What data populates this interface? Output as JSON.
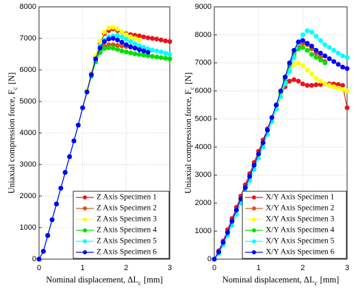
{
  "chart_data": [
    {
      "type": "line",
      "xlabel": [
        "Nominal displacement, ΔL",
        "c",
        "[mm]"
      ],
      "ylabel": [
        "Uniaxial compression force, F",
        "c",
        "[N]"
      ],
      "xlim": [
        0,
        3
      ],
      "xticks": [
        0,
        1,
        2,
        3
      ],
      "ylim": [
        0,
        8000
      ],
      "yticks": [
        0,
        1000,
        2000,
        3000,
        4000,
        5000,
        6000,
        7000,
        8000
      ],
      "grid": true,
      "legend": "lower right",
      "x": [
        0,
        0.1,
        0.2,
        0.3,
        0.4,
        0.5,
        0.6,
        0.7,
        0.8,
        0.9,
        1.0,
        1.1,
        1.2,
        1.3,
        1.4,
        1.5,
        1.6,
        1.7,
        1.8,
        1.9,
        2.0,
        2.1,
        2.2,
        2.3,
        2.4,
        2.5,
        2.6,
        2.7,
        2.8,
        2.9,
        3.0
      ],
      "series": [
        {
          "name": "Z Axis Specimen 1",
          "color": "#e8141b",
          "values": [
            0,
            250,
            750,
            1250,
            1750,
            2250,
            2750,
            3250,
            3750,
            4250,
            4800,
            5350,
            5900,
            6400,
            6850,
            7150,
            7250,
            7300,
            7250,
            7200,
            7150,
            7120,
            7100,
            7080,
            7050,
            7020,
            7000,
            6980,
            6950,
            6920,
            6900
          ]
        },
        {
          "name": "Z Axis Specimen 2",
          "color": "#d95319",
          "values": [
            0,
            250,
            750,
            1250,
            1750,
            2250,
            2750,
            3250,
            3750,
            4250,
            4800,
            5300,
            5850,
            6300,
            6600,
            6750,
            6800,
            6800,
            6780,
            6760,
            6740,
            6720,
            6700,
            6680,
            6650,
            null,
            null,
            null,
            null,
            null,
            null
          ]
        },
        {
          "name": "Z Axis Specimen 3",
          "color": "#ffff00",
          "values": [
            0,
            250,
            750,
            1250,
            1750,
            2250,
            2750,
            3250,
            3750,
            4250,
            4800,
            5350,
            5900,
            6450,
            6900,
            7200,
            7330,
            7350,
            7300,
            7200,
            7120,
            7050,
            7000,
            6950,
            null,
            null,
            null,
            null,
            null,
            null,
            null
          ]
        },
        {
          "name": "Z Axis Specimen 4",
          "color": "#00e000",
          "values": [
            0,
            250,
            750,
            1250,
            1750,
            2250,
            2750,
            3250,
            3750,
            4250,
            4800,
            5300,
            5800,
            6250,
            6550,
            6680,
            6700,
            6690,
            6650,
            6600,
            6570,
            6540,
            6510,
            6490,
            6470,
            6450,
            6430,
            6410,
            6390,
            6370,
            6350
          ]
        },
        {
          "name": "Z Axis Specimen 5",
          "color": "#00ffff",
          "values": [
            0,
            250,
            750,
            1250,
            1750,
            2250,
            2750,
            3250,
            3750,
            4250,
            4800,
            5300,
            5850,
            6350,
            6750,
            6950,
            7050,
            7080,
            7100,
            7050,
            6980,
            6900,
            6830,
            6770,
            6720,
            6670,
            6630,
            6600,
            6570,
            6530,
            6500
          ]
        },
        {
          "name": "Z Axis Specimen 6",
          "color": "#0000ff",
          "values": [
            0,
            250,
            750,
            1250,
            1750,
            2250,
            2750,
            3250,
            3750,
            4250,
            4800,
            5300,
            5850,
            6350,
            6700,
            6900,
            6980,
            7000,
            6950,
            6880,
            6800,
            6740,
            6690,
            6640,
            6600,
            6560,
            null,
            null,
            null,
            null,
            null
          ]
        }
      ]
    },
    {
      "type": "line",
      "xlabel": [
        "Nominal displacement, ΔL",
        "c",
        "[mm]"
      ],
      "ylabel": [
        "Uniaxial compression force, F",
        "c",
        "[N]"
      ],
      "xlim": [
        0,
        3
      ],
      "xticks": [
        0,
        1,
        2,
        3
      ],
      "ylim": [
        0,
        9000
      ],
      "yticks": [
        0,
        1000,
        2000,
        3000,
        4000,
        5000,
        6000,
        7000,
        8000,
        9000
      ],
      "grid": true,
      "legend": "lower right",
      "x": [
        0,
        0.1,
        0.2,
        0.3,
        0.4,
        0.5,
        0.6,
        0.7,
        0.8,
        0.9,
        1.0,
        1.1,
        1.2,
        1.3,
        1.4,
        1.5,
        1.6,
        1.7,
        1.8,
        1.9,
        2.0,
        2.1,
        2.2,
        2.3,
        2.4,
        2.5,
        2.6,
        2.7,
        2.8,
        2.9,
        3.0
      ],
      "series": [
        {
          "name": "X/Y Axis Specimen 1",
          "color": "#e8141b",
          "values": [
            0,
            300,
            650,
            1050,
            1450,
            1850,
            2250,
            2650,
            3050,
            3450,
            3850,
            4250,
            4650,
            5050,
            5450,
            5850,
            6150,
            6350,
            6400,
            6350,
            6250,
            6200,
            6200,
            6220,
            6230,
            6250,
            6250,
            6250,
            6230,
            6200,
            5400
          ]
        },
        {
          "name": "X/Y Axis Specimen 2",
          "color": "#d95319",
          "values": [
            0,
            250,
            600,
            950,
            1350,
            1750,
            2150,
            2550,
            2950,
            3350,
            3750,
            4150,
            4600,
            5050,
            5500,
            5950,
            6450,
            6950,
            7350,
            7600,
            7700,
            7650,
            7500,
            7350,
            7200,
            7050,
            null,
            null,
            null,
            null,
            null
          ]
        },
        {
          "name": "X/Y Axis Specimen 3",
          "color": "#ffff00",
          "values": [
            0,
            250,
            600,
            950,
            1350,
            1750,
            2150,
            2550,
            2950,
            3350,
            3750,
            4150,
            4550,
            4950,
            5400,
            5850,
            6300,
            6700,
            6950,
            7000,
            6900,
            6750,
            6600,
            6450,
            6350,
            6250,
            6200,
            6150,
            6100,
            6050,
            6000
          ]
        },
        {
          "name": "X/Y Axis Specimen 4",
          "color": "#00e000",
          "values": [
            0,
            250,
            600,
            950,
            1350,
            1750,
            2150,
            2550,
            2950,
            3350,
            3750,
            4150,
            4600,
            5050,
            5500,
            5950,
            6400,
            6900,
            7300,
            7500,
            7550,
            7450,
            7300,
            7200,
            7100,
            7000,
            null,
            null,
            null,
            null,
            null
          ]
        },
        {
          "name": "X/Y Axis Specimen 5",
          "color": "#00ffff",
          "values": [
            0,
            200,
            500,
            850,
            1200,
            1600,
            2000,
            2400,
            2800,
            3200,
            3600,
            4000,
            4450,
            4900,
            5350,
            5800,
            6250,
            6700,
            7200,
            7700,
            8000,
            8150,
            8100,
            7950,
            7800,
            7650,
            7550,
            7450,
            7350,
            7250,
            7200
          ]
        },
        {
          "name": "X/Y Axis Specimen 6",
          "color": "#0000ff",
          "values": [
            0,
            250,
            600,
            950,
            1350,
            1750,
            2150,
            2550,
            2950,
            3350,
            3750,
            4150,
            4600,
            5050,
            5500,
            6000,
            6500,
            7000,
            7450,
            7750,
            7800,
            7700,
            7600,
            7450,
            7350,
            7250,
            7150,
            7050,
            6950,
            6850,
            6800
          ]
        }
      ]
    }
  ]
}
